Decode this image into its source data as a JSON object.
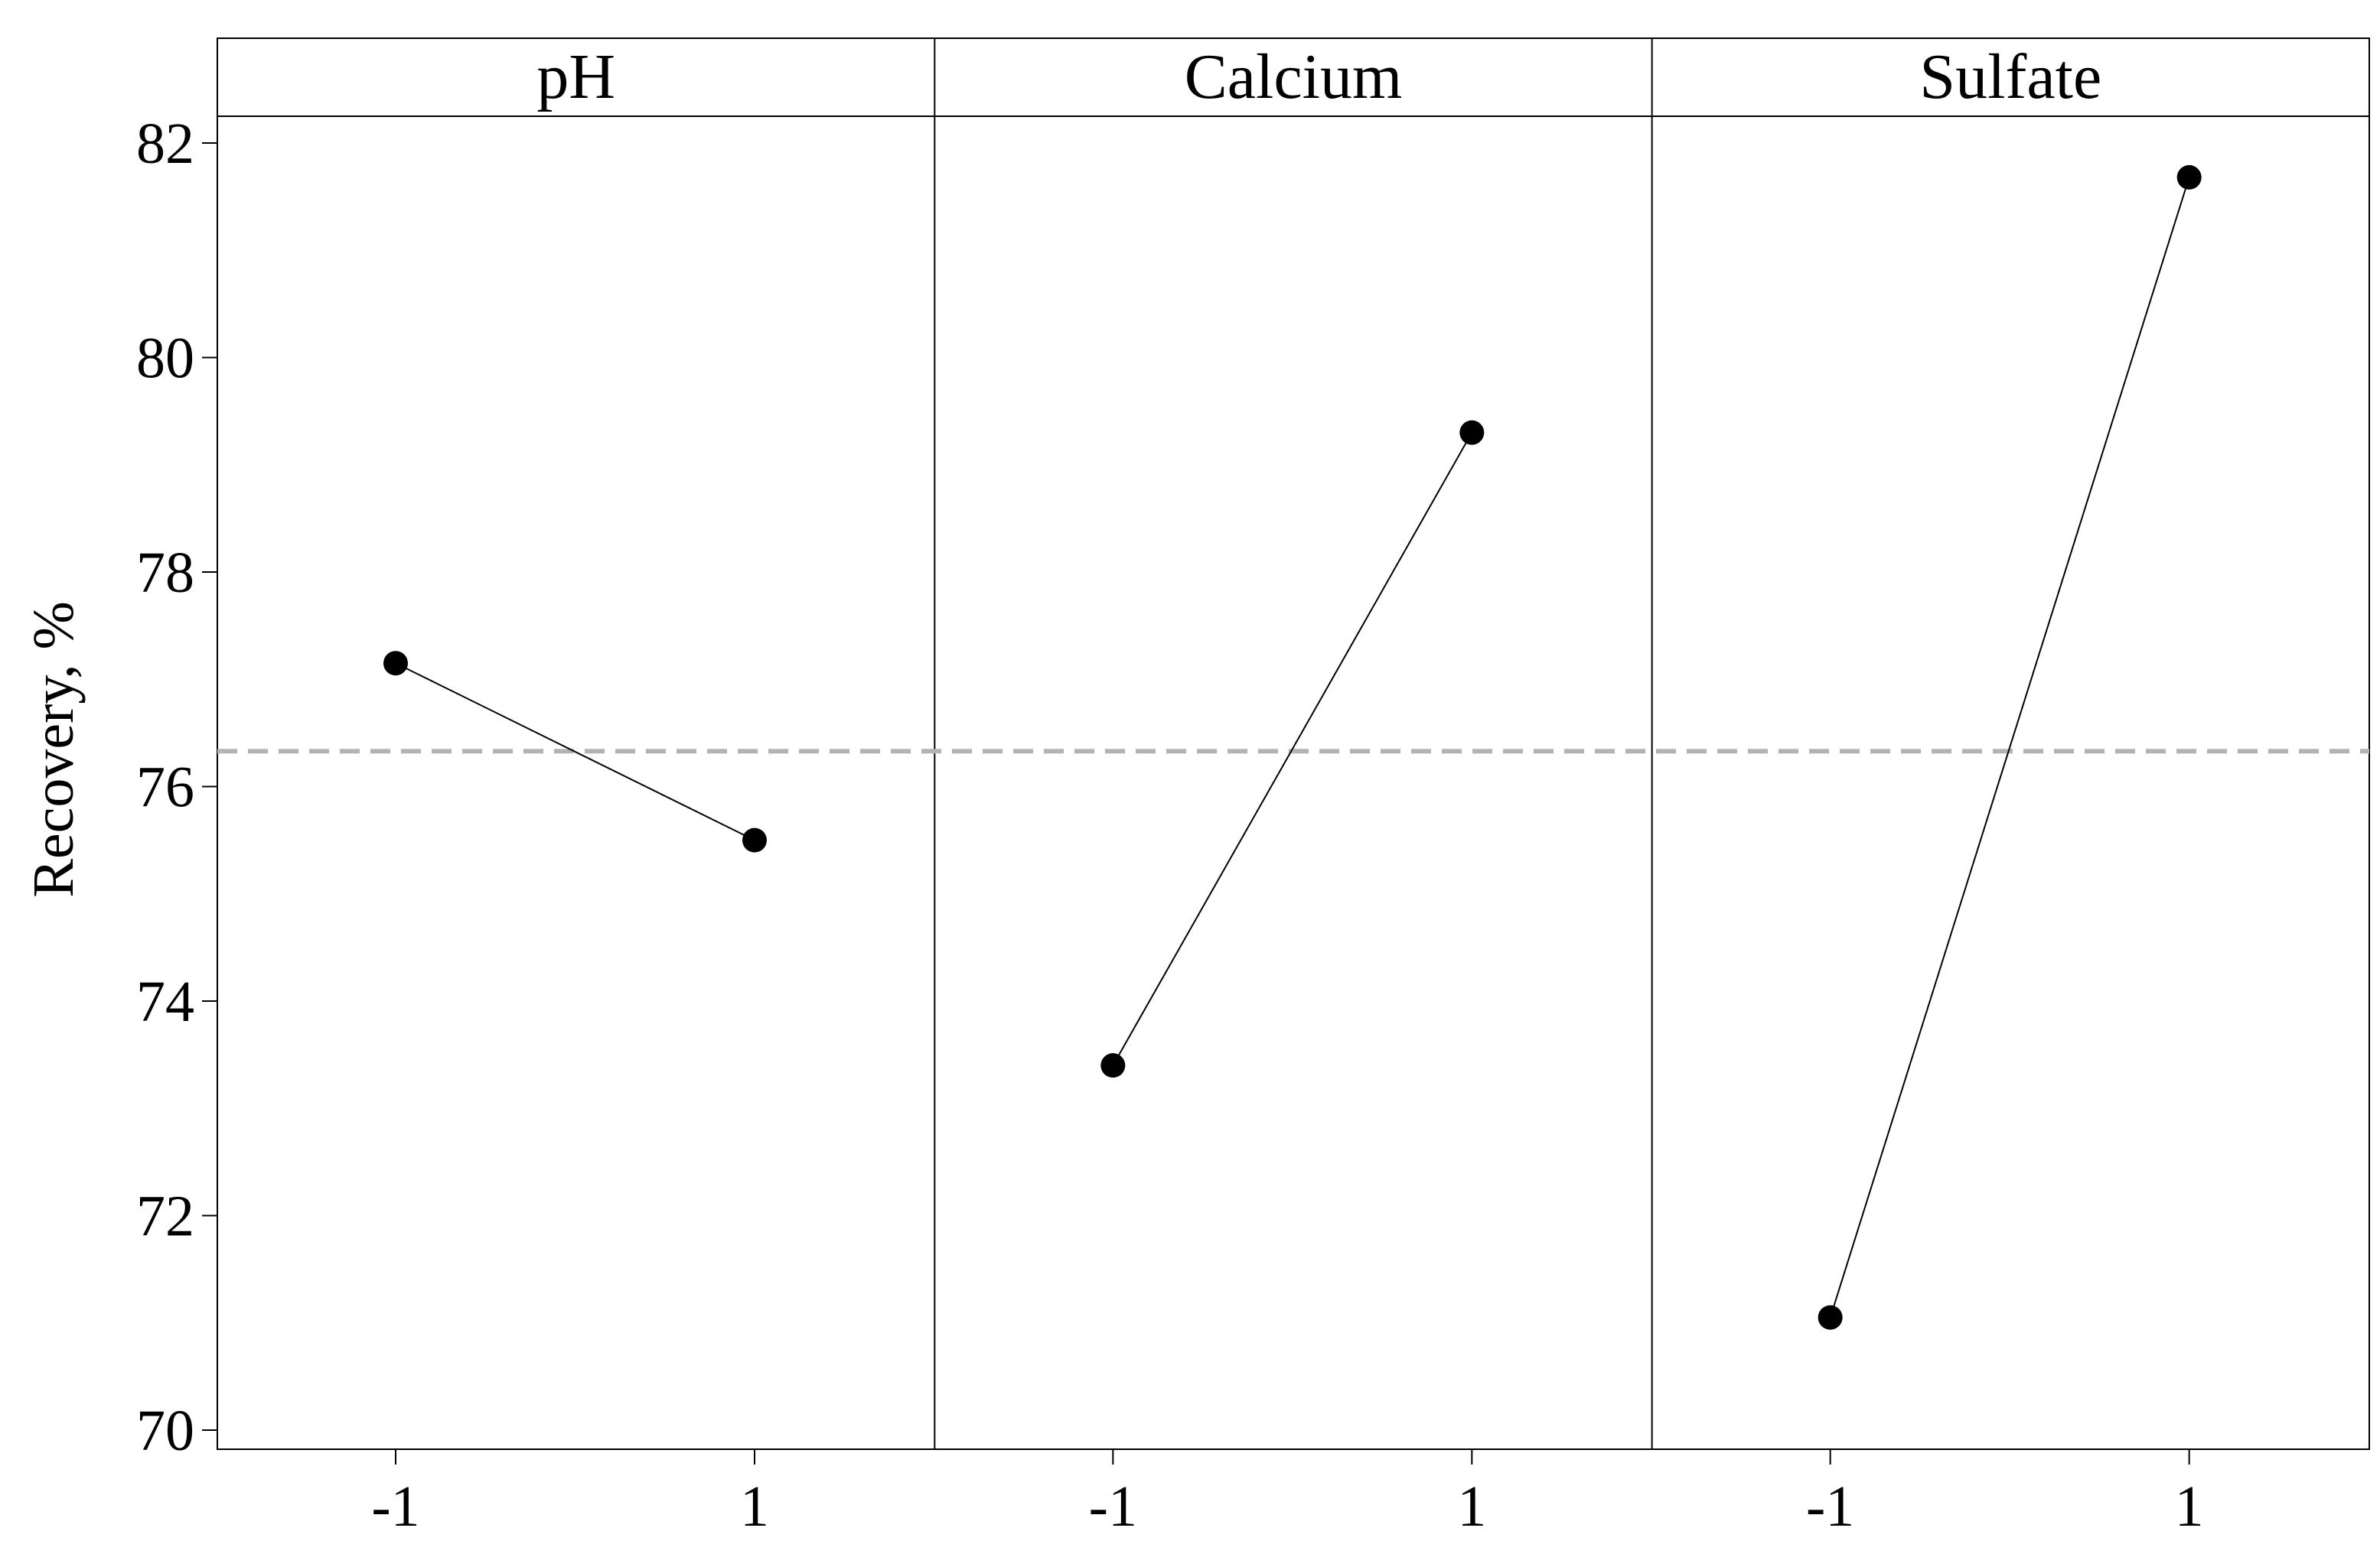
{
  "chart_data": {
    "type": "line",
    "ylabel": "Recovery, %",
    "ylim": [
      70,
      83
    ],
    "y_ticks": [
      "70",
      "72",
      "74",
      "76",
      "78",
      "80",
      "82"
    ],
    "x_ticks": [
      "-1",
      "1"
    ],
    "reference_line": {
      "y": 76.33,
      "style": "dashed",
      "color": "#b3b3b3"
    },
    "grid": false,
    "panels": [
      {
        "title": "pH",
        "x": [
          -1,
          1
        ],
        "values": [
          77.15,
          75.5
        ]
      },
      {
        "title": "Calcium",
        "x": [
          -1,
          1
        ],
        "values": [
          73.4,
          79.3
        ]
      },
      {
        "title": "Sulfate",
        "x": [
          -1,
          1
        ],
        "values": [
          71.05,
          81.68
        ]
      }
    ]
  },
  "colors": {
    "line": "#000000",
    "marker": "#000000",
    "reference": "#b3b3b3",
    "frame": "#000000"
  }
}
